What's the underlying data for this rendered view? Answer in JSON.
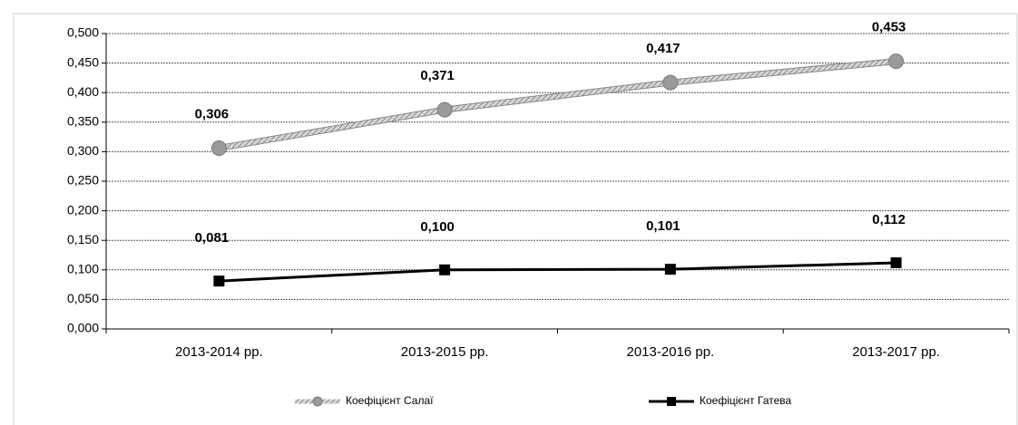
{
  "chart_data": {
    "type": "line",
    "categories": [
      "2013-2014 рр.",
      "2013-2015 рр.",
      "2013-2016 рр.",
      "2013-2017 рр."
    ],
    "series": [
      {
        "name": "Коефіцієнт Салаї",
        "color": "#9a9a9a",
        "values": [
          0.306,
          0.371,
          0.417,
          0.453
        ],
        "value_labels": [
          "0,306",
          "0,371",
          "0,417",
          "0,453"
        ]
      },
      {
        "name": "Коефіцієнт Гатева",
        "color": "#000000",
        "values": [
          0.081,
          0.1,
          0.101,
          0.112
        ],
        "value_labels": [
          "0,081",
          "0,100",
          "0,101",
          "0,112"
        ]
      }
    ],
    "ylim": [
      0,
      0.5
    ],
    "yticks": [
      {
        "value": 0,
        "label": "0,000"
      },
      {
        "value": 0.05,
        "label": "0,050"
      },
      {
        "value": 0.1,
        "label": "0,100"
      },
      {
        "value": 0.15,
        "label": "0,150"
      },
      {
        "value": 0.2,
        "label": "0,200"
      },
      {
        "value": 0.25,
        "label": "0,250"
      },
      {
        "value": 0.3,
        "label": "0,300"
      },
      {
        "value": 0.35,
        "label": "0,350"
      },
      {
        "value": 0.4,
        "label": "0,400"
      },
      {
        "value": 0.45,
        "label": "0,450"
      },
      {
        "value": 0.5,
        "label": "0,500"
      }
    ],
    "grid": true,
    "legend": "bottom"
  }
}
